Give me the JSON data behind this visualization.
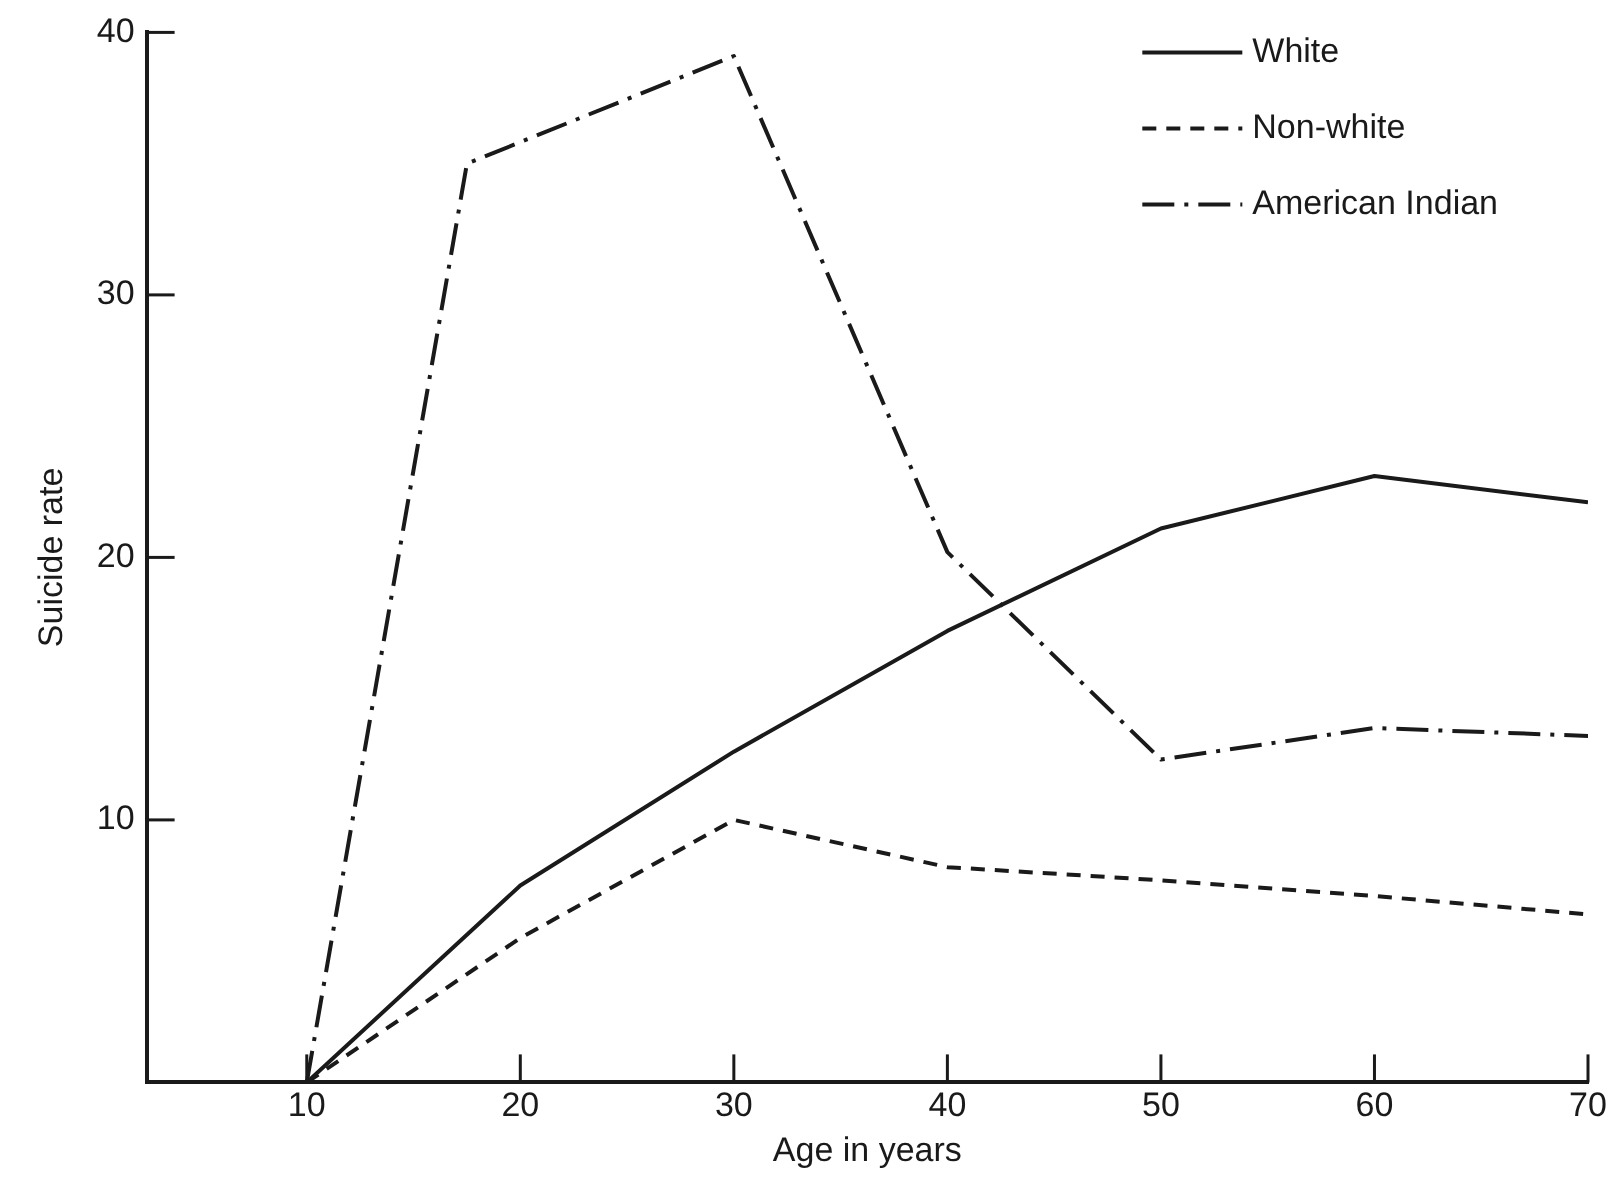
{
  "chart_data": {
    "type": "line",
    "xlabel": "Age in years",
    "ylabel": "Suicide rate",
    "xlim": [
      2.5,
      70
    ],
    "xticks": [
      10,
      20,
      30,
      40,
      50,
      60,
      70
    ],
    "ylim": [
      0,
      40
    ],
    "yticks": [
      10,
      20,
      30,
      40
    ],
    "grid": false,
    "legend": "top right",
    "marker": "none",
    "series": [
      {
        "name": "White",
        "color": "#1a1a1a",
        "line_style": "solid",
        "x": [
          10,
          20,
          30,
          40,
          50,
          60,
          70
        ],
        "values": [
          0,
          7.5,
          12.6,
          17.2,
          21.1,
          23.1,
          22.1
        ]
      },
      {
        "name": "Non-white",
        "color": "#1a1a1a",
        "line_style": "dashed",
        "x": [
          10,
          20,
          30,
          40,
          50,
          60,
          70
        ],
        "values": [
          0,
          5.5,
          10.0,
          8.2,
          7.7,
          7.1,
          6.4
        ]
      },
      {
        "name": "American Indian",
        "color": "#1a1a1a",
        "line_style": "dashdot",
        "x": [
          10,
          17.5,
          30,
          40,
          50,
          60,
          70
        ],
        "values": [
          0,
          35.0,
          39.1,
          20.2,
          12.3,
          13.5,
          13.2
        ]
      }
    ]
  }
}
